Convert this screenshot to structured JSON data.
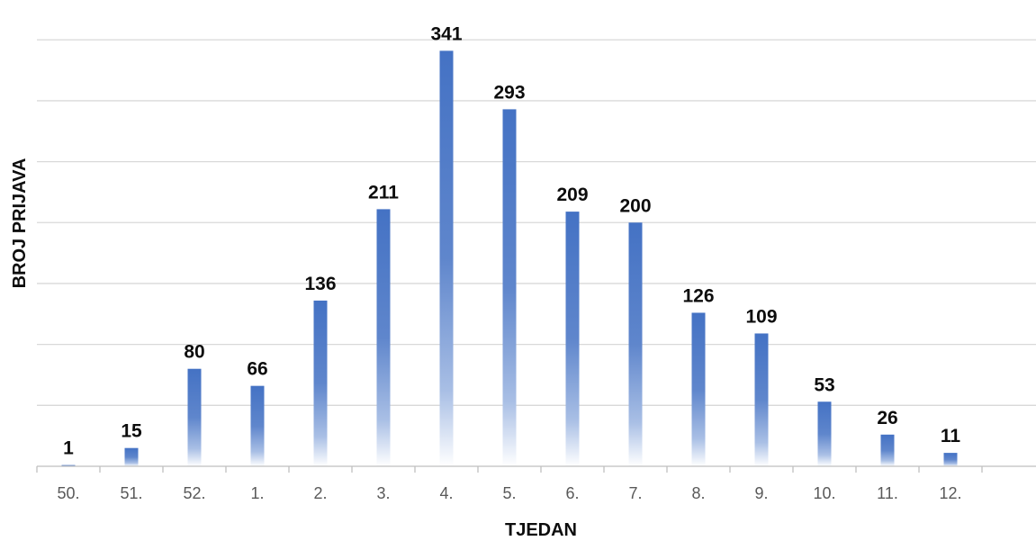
{
  "chart_data": {
    "type": "bar",
    "categories": [
      "50.",
      "51.",
      "52.",
      "1.",
      "2.",
      "3.",
      "4.",
      "5.",
      "6.",
      "7.",
      "8.",
      "9.",
      "10.",
      "11.",
      "12."
    ],
    "values": [
      1,
      15,
      80,
      66,
      136,
      211,
      341,
      293,
      209,
      200,
      126,
      109,
      53,
      26,
      11
    ],
    "xlabel": "TJEDAN",
    "ylabel": "BROJ PRIJAVA",
    "ylim": [
      0,
      350
    ],
    "grid": true,
    "y_tick_labels_visible": false,
    "data_labels": true,
    "legend": "none",
    "bar_color": "#4472c4"
  }
}
